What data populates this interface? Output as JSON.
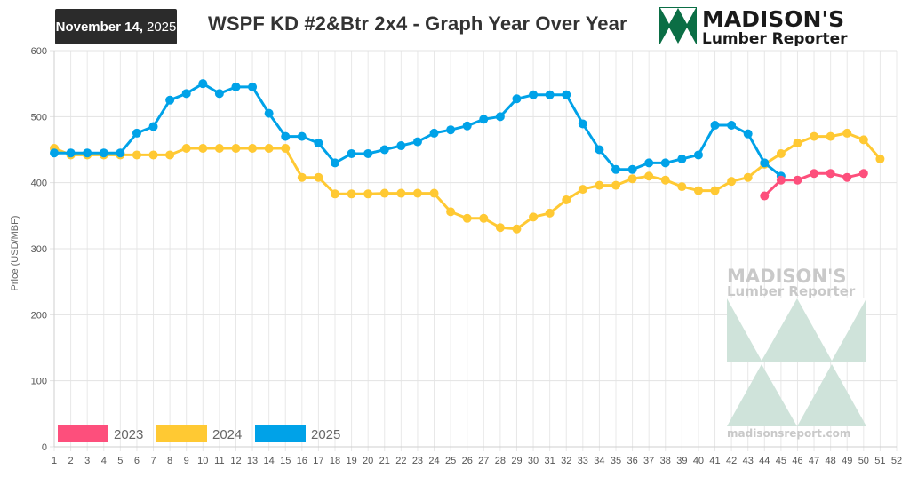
{
  "header": {
    "date_main": "November 14,",
    "date_year": "2025",
    "title": "WSPF KD #2&Btr 2x4 - Graph Year Over Year",
    "brand_line1": "MADISON'S",
    "brand_line2": "Lumber Reporter"
  },
  "watermark": {
    "line1": "MADISON'S",
    "line2": "Lumber Reporter",
    "url": "madisonsreport.com"
  },
  "colors": {
    "series_2023": "#fd4f7c",
    "series_2024": "#ffc933",
    "series_2025": "#00a2e8",
    "logo_green": "#0b6e45",
    "watermark_green": "#cfe3da"
  },
  "chart_data": {
    "type": "line",
    "title": "WSPF KD #2&Btr 2x4 - Graph Year Over Year",
    "xlabel": "",
    "ylabel": "Price (USD/MBF)",
    "x": [
      1,
      2,
      3,
      4,
      5,
      6,
      7,
      8,
      9,
      10,
      11,
      12,
      13,
      14,
      15,
      16,
      17,
      18,
      19,
      20,
      21,
      22,
      23,
      24,
      25,
      26,
      27,
      28,
      29,
      30,
      31,
      32,
      33,
      34,
      35,
      36,
      37,
      38,
      39,
      40,
      41,
      42,
      43,
      44,
      45,
      46,
      47,
      48,
      49,
      50,
      51,
      52
    ],
    "xlim": [
      1,
      52
    ],
    "ylim": [
      0,
      600
    ],
    "yticks": [
      0,
      100,
      200,
      300,
      400,
      500,
      600
    ],
    "grid": true,
    "legend": "bottom-left",
    "series": [
      {
        "name": "2023",
        "x": [
          44,
          45,
          46,
          47,
          48,
          49,
          50
        ],
        "values": [
          380,
          404,
          404,
          414,
          414,
          408,
          414
        ]
      },
      {
        "name": "2024",
        "x": [
          1,
          2,
          3,
          4,
          5,
          6,
          7,
          8,
          9,
          10,
          11,
          12,
          13,
          14,
          15,
          16,
          17,
          18,
          19,
          20,
          21,
          22,
          23,
          24,
          25,
          26,
          27,
          28,
          29,
          30,
          31,
          32,
          33,
          34,
          35,
          36,
          37,
          38,
          39,
          40,
          41,
          42,
          43,
          44,
          45,
          46,
          47,
          48,
          49,
          50,
          51
        ],
        "values": [
          452,
          442,
          442,
          442,
          442,
          442,
          442,
          442,
          452,
          452,
          452,
          452,
          452,
          452,
          452,
          408,
          408,
          383,
          383,
          383,
          384,
          384,
          384,
          384,
          356,
          346,
          346,
          332,
          330,
          348,
          354,
          374,
          390,
          396,
          396,
          406,
          410,
          404,
          394,
          388,
          388,
          402,
          408,
          428,
          444,
          460,
          470,
          470,
          475,
          465,
          436
        ]
      },
      {
        "name": "2025",
        "x": [
          1,
          2,
          3,
          4,
          5,
          6,
          7,
          8,
          9,
          10,
          11,
          12,
          13,
          14,
          15,
          16,
          17,
          18,
          19,
          20,
          21,
          22,
          23,
          24,
          25,
          26,
          27,
          28,
          29,
          30,
          31,
          32,
          33,
          34,
          35,
          36,
          37,
          38,
          39,
          40,
          41,
          42,
          43,
          44,
          45
        ],
        "values": [
          445,
          445,
          445,
          445,
          445,
          475,
          485,
          525,
          535,
          550,
          535,
          545,
          545,
          505,
          470,
          470,
          460,
          430,
          444,
          444,
          450,
          456,
          462,
          475,
          480,
          486,
          496,
          500,
          527,
          533,
          533,
          533,
          489,
          450,
          420,
          420,
          430,
          430,
          436,
          442,
          487,
          487,
          474,
          430,
          410
        ]
      }
    ]
  }
}
